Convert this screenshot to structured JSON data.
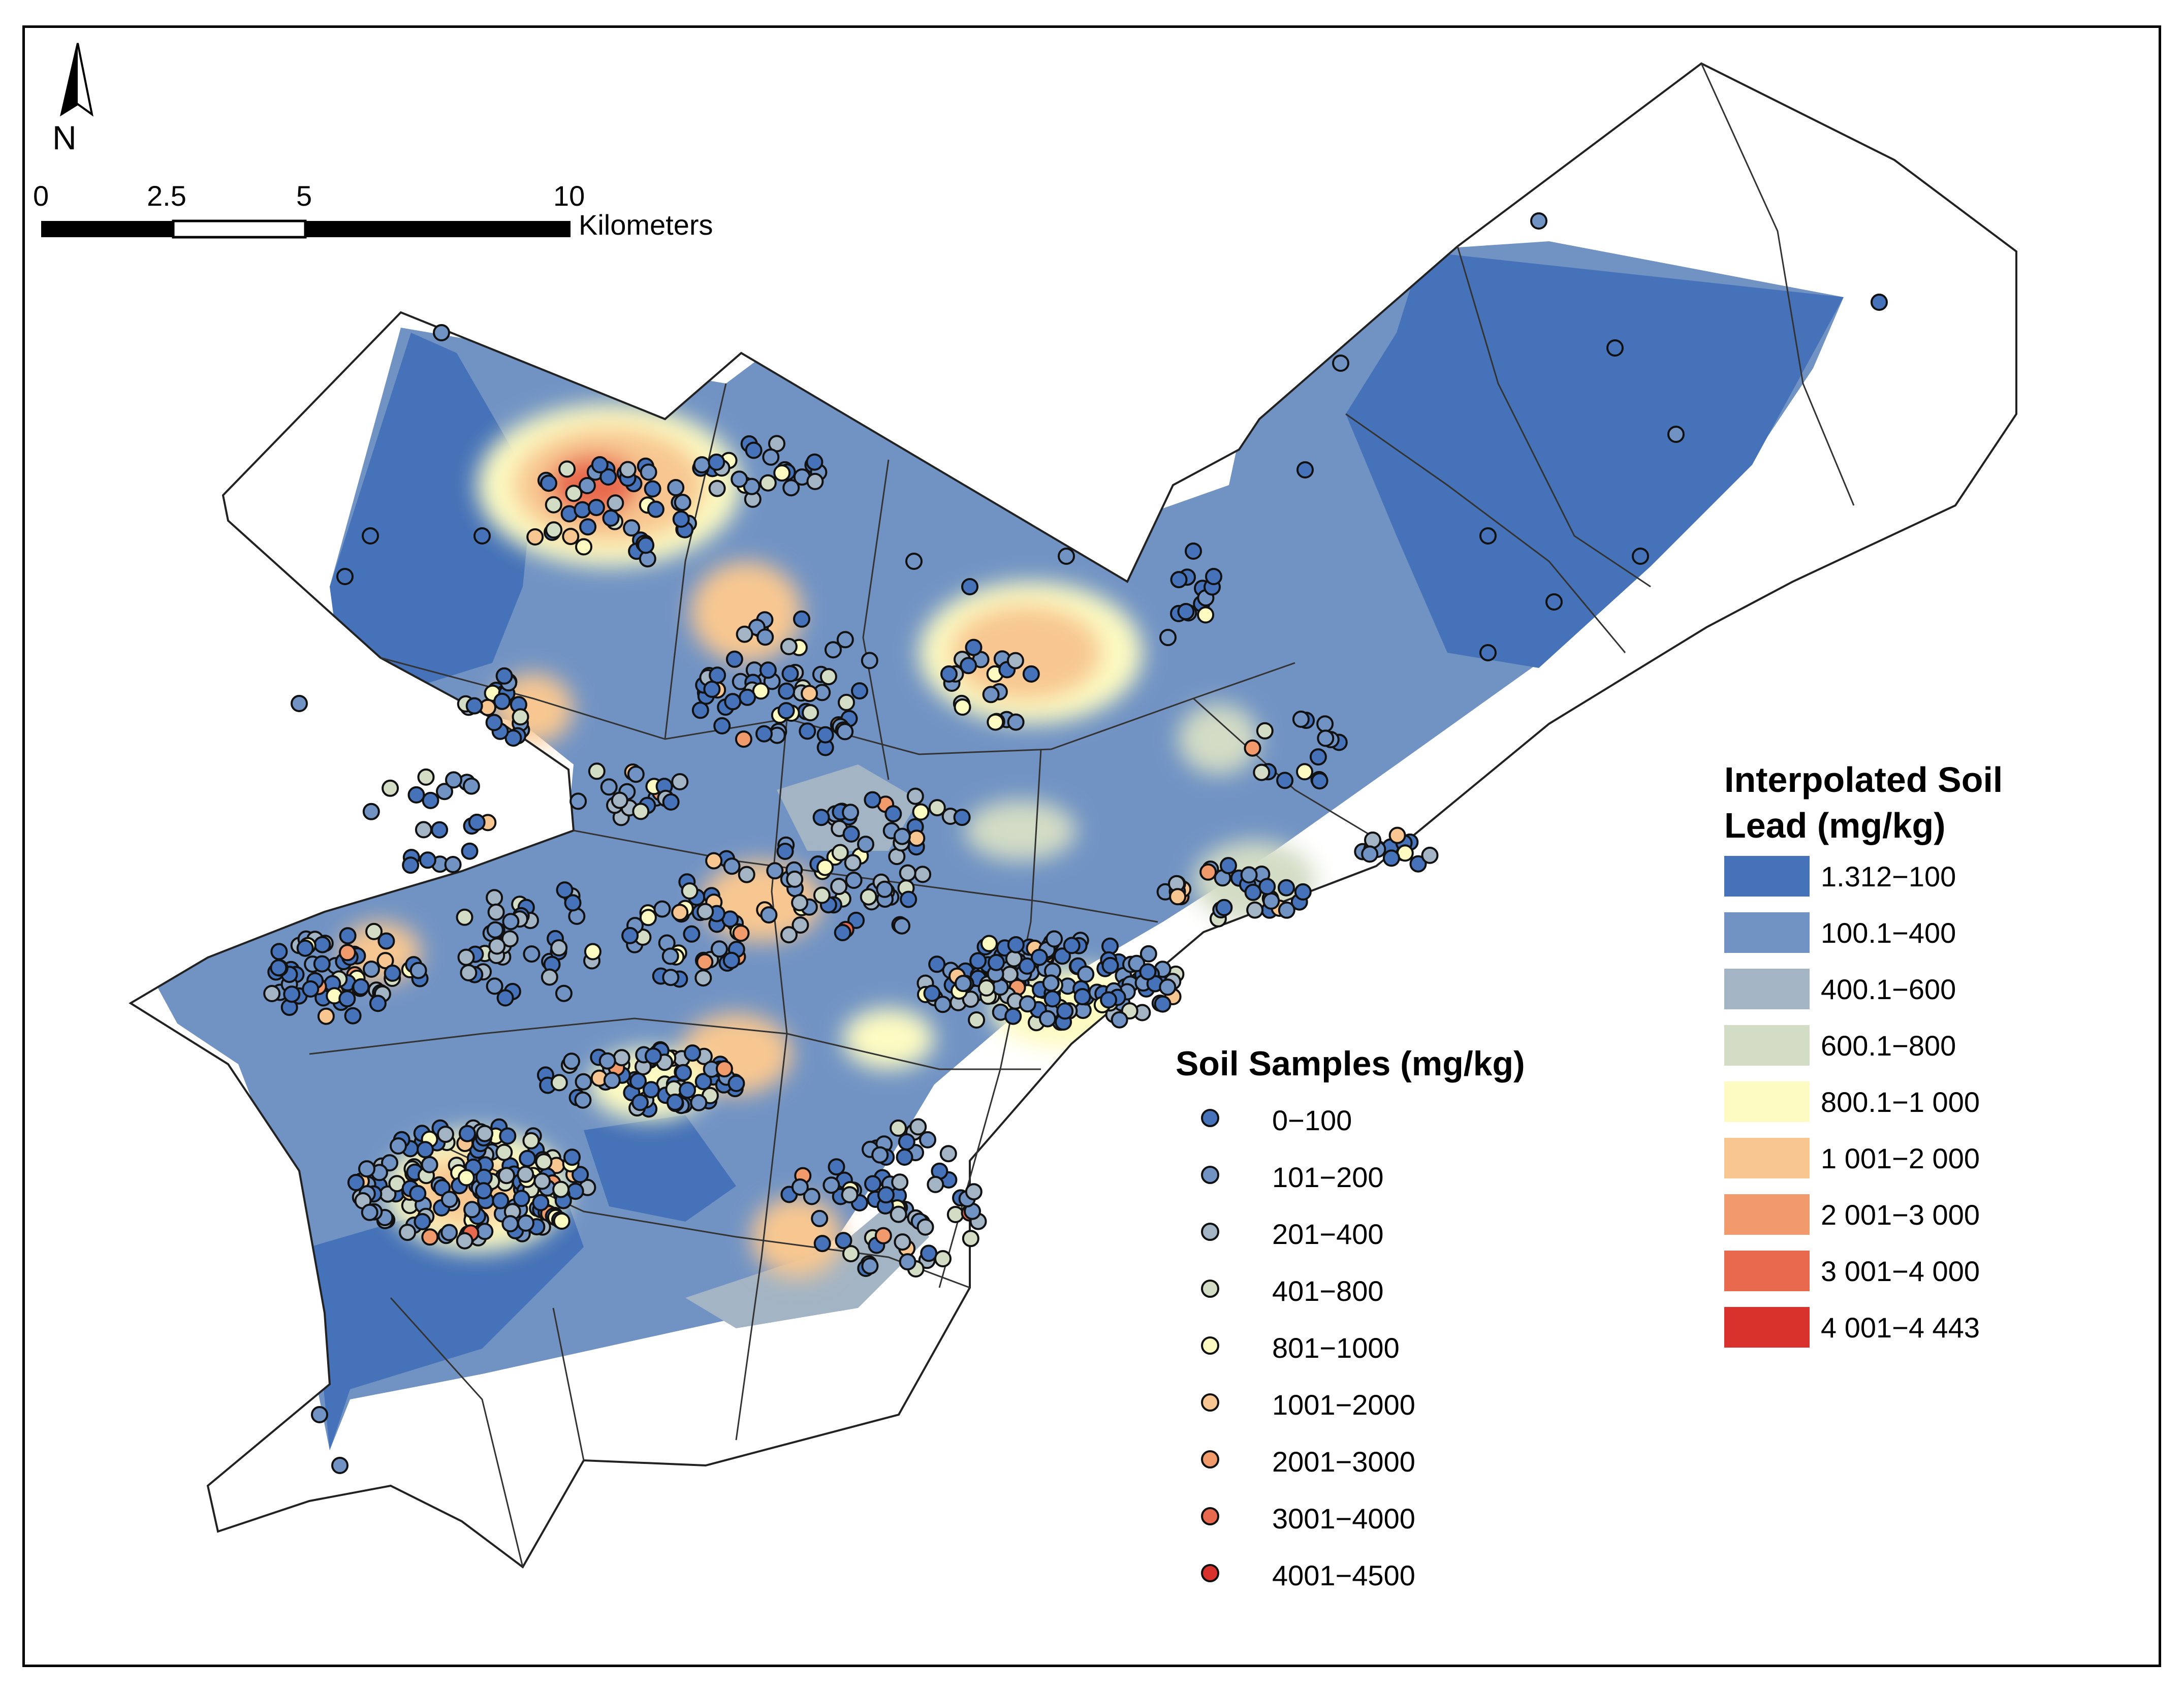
{
  "map": {
    "north_label": "N",
    "scale_bar": {
      "ticks": [
        "0",
        "2.5",
        "5",
        "10"
      ],
      "unit": "Kilometers"
    }
  },
  "legend_surface": {
    "title_line1": "Interpolated Soil",
    "title_line2": "Lead  (mg/kg)",
    "classes": [
      {
        "label": "1.312−100",
        "color": "#4572b8"
      },
      {
        "label": "100.1−400",
        "color": "#7193c4"
      },
      {
        "label": "400.1−600",
        "color": "#a3b4c4"
      },
      {
        "label": "600.1−800",
        "color": "#d3dcc5"
      },
      {
        "label": "800.1−1 000",
        "color": "#fdfbc2"
      },
      {
        "label": "1 001−2 000",
        "color": "#f8c791"
      },
      {
        "label": "2 001−3 000",
        "color": "#f19a6b"
      },
      {
        "label": "3 001−4 000",
        "color": "#e8694d"
      },
      {
        "label": "4 001−4 443",
        "color": "#d9312c"
      }
    ]
  },
  "legend_points": {
    "title": "Soil Samples  (mg/kg)",
    "classes": [
      {
        "label": "0−100",
        "color": "#4572b8"
      },
      {
        "label": "101−200",
        "color": "#7193c4"
      },
      {
        "label": "201−400",
        "color": "#a3b4c4"
      },
      {
        "label": "401−800",
        "color": "#d3dcc5"
      },
      {
        "label": "801−1000",
        "color": "#fdfbc2"
      },
      {
        "label": "1001−2000",
        "color": "#f8c791"
      },
      {
        "label": "2001−3000",
        "color": "#f19a6b"
      },
      {
        "label": "3001−4000",
        "color": "#e8694d"
      },
      {
        "label": "4001−4500",
        "color": "#d9312c"
      }
    ]
  }
}
